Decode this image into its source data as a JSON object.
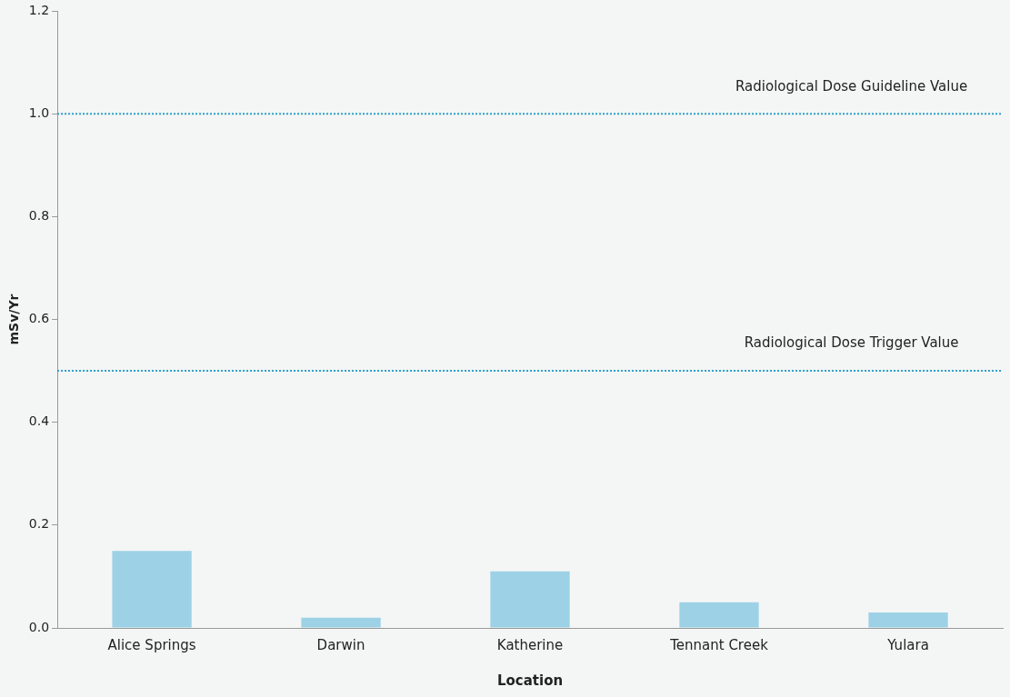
{
  "chart_data": {
    "type": "bar",
    "xlabel": "Location",
    "ylabel": "mSv/Yr",
    "categories": [
      "Alice Springs",
      "Darwin",
      "Katherine",
      "Tennant Creek",
      "Yulara"
    ],
    "values": [
      0.15,
      0.02,
      0.11,
      0.05,
      0.03
    ],
    "color": "#9dd2e6",
    "ylim": [
      0,
      1.2
    ],
    "yticks": [
      {
        "value": 0,
        "label": "0.0"
      },
      {
        "value": 0.2,
        "label": "0.2"
      },
      {
        "value": 0.4,
        "label": "0.4"
      },
      {
        "value": 0.6,
        "label": "0.6"
      },
      {
        "value": 0.8,
        "label": "0.8"
      },
      {
        "value": 1,
        "label": "1.0"
      },
      {
        "value": 1.2,
        "label": "1.2"
      }
    ],
    "ref_lines": [
      {
        "axis": "y",
        "value": 1,
        "label": "Radiological Dose Guideline Value",
        "color": "#2a9fc9",
        "line_style": "dotted"
      },
      {
        "axis": "y",
        "value": 0.5,
        "label": "Radiological Dose Trigger Value",
        "color": "#2a9fc9",
        "line_style": "dotted"
      }
    ],
    "grid": false,
    "legend": false
  }
}
